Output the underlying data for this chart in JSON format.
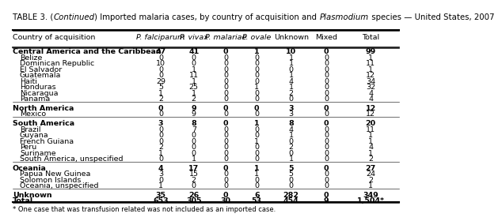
{
  "title_parts": [
    {
      "text": "TABLE 3. (",
      "italic": false
    },
    {
      "text": "Continued",
      "italic": true
    },
    {
      "text": ") Imported malaria cases, by country of acquisition and ",
      "italic": false
    },
    {
      "text": "Plasmodium",
      "italic": true
    },
    {
      "text": " species — United States, 2007",
      "italic": false
    }
  ],
  "columns": [
    "Country of acquisition",
    "P. falciparum",
    "P. vivax",
    "P. malariae",
    "P. ovale",
    "Unknown",
    "Mixed",
    "Total"
  ],
  "col_italic": [
    false,
    true,
    true,
    true,
    true,
    false,
    false,
    false
  ],
  "col_align": [
    "left",
    "right",
    "right",
    "right",
    "right",
    "right",
    "right",
    "right"
  ],
  "rows": [
    {
      "label": "Central America and the Caribbean",
      "bold": true,
      "indent": false,
      "values": [
        "47",
        "41",
        "0",
        "1",
        "10",
        "0",
        "99"
      ]
    },
    {
      "label": "Belize",
      "bold": false,
      "indent": true,
      "values": [
        "0",
        "0",
        "0",
        "0",
        "1",
        "0",
        "1"
      ]
    },
    {
      "label": "Dominican Republic",
      "bold": false,
      "indent": true,
      "values": [
        "10",
        "0",
        "0",
        "0",
        "1",
        "0",
        "11"
      ]
    },
    {
      "label": "El Salvador",
      "bold": false,
      "indent": true,
      "values": [
        "0",
        "1",
        "0",
        "0",
        "0",
        "0",
        "1"
      ]
    },
    {
      "label": "Guatemala",
      "bold": false,
      "indent": true,
      "values": [
        "0",
        "11",
        "0",
        "0",
        "1",
        "0",
        "12"
      ]
    },
    {
      "label": "Haiti",
      "bold": false,
      "indent": true,
      "values": [
        "29",
        "1",
        "0",
        "0",
        "4",
        "0",
        "34"
      ]
    },
    {
      "label": "Honduras",
      "bold": false,
      "indent": true,
      "values": [
        "5",
        "25",
        "0",
        "1",
        "1",
        "0",
        "32"
      ]
    },
    {
      "label": "Nicaragua",
      "bold": false,
      "indent": true,
      "values": [
        "1",
        "1",
        "0",
        "0",
        "2",
        "0",
        "4"
      ]
    },
    {
      "label": "Panama",
      "bold": false,
      "indent": true,
      "values": [
        "2",
        "2",
        "0",
        "0",
        "0",
        "0",
        "4"
      ]
    },
    {
      "label": "North America",
      "bold": true,
      "indent": false,
      "values": [
        "0",
        "9",
        "0",
        "0",
        "3",
        "0",
        "12"
      ]
    },
    {
      "label": "Mexico",
      "bold": false,
      "indent": true,
      "values": [
        "0",
        "9",
        "0",
        "0",
        "3",
        "0",
        "12"
      ]
    },
    {
      "label": "South America",
      "bold": true,
      "indent": false,
      "values": [
        "3",
        "8",
        "0",
        "1",
        "8",
        "0",
        "20"
      ]
    },
    {
      "label": "Brazil",
      "bold": false,
      "indent": true,
      "values": [
        "0",
        "7",
        "0",
        "0",
        "4",
        "0",
        "11"
      ]
    },
    {
      "label": "Guyana",
      "bold": false,
      "indent": true,
      "values": [
        "0",
        "0",
        "0",
        "0",
        "1",
        "0",
        "1"
      ]
    },
    {
      "label": "French Guiana",
      "bold": false,
      "indent": true,
      "values": [
        "0",
        "0",
        "0",
        "1",
        "0",
        "0",
        "1"
      ]
    },
    {
      "label": "Peru",
      "bold": false,
      "indent": true,
      "values": [
        "2",
        "0",
        "0",
        "0",
        "2",
        "0",
        "4"
      ]
    },
    {
      "label": "Suriname",
      "bold": false,
      "indent": true,
      "values": [
        "1",
        "0",
        "0",
        "0",
        "0",
        "0",
        "1"
      ]
    },
    {
      "label": "South America, unspecified",
      "bold": false,
      "indent": true,
      "values": [
        "0",
        "1",
        "0",
        "0",
        "1",
        "0",
        "2"
      ]
    },
    {
      "label": "Oceania",
      "bold": true,
      "indent": false,
      "values": [
        "4",
        "17",
        "0",
        "1",
        "5",
        "0",
        "27"
      ]
    },
    {
      "label": "Papua New Guinea",
      "bold": false,
      "indent": true,
      "values": [
        "3",
        "15",
        "0",
        "1",
        "5",
        "0",
        "24"
      ]
    },
    {
      "label": "Solomon Islands",
      "bold": false,
      "indent": true,
      "values": [
        "0",
        "2",
        "0",
        "0",
        "0",
        "0",
        "2"
      ]
    },
    {
      "label": "Oceania, unspecified",
      "bold": false,
      "indent": true,
      "values": [
        "1",
        "0",
        "0",
        "0",
        "0",
        "0",
        "1"
      ]
    },
    {
      "label": "Unknown",
      "bold": true,
      "indent": false,
      "values": [
        "35",
        "26",
        "0",
        "6",
        "282",
        "0",
        "349"
      ]
    },
    {
      "label": "Total",
      "bold": true,
      "indent": false,
      "values": [
        "653",
        "305",
        "30",
        "53",
        "454",
        "9",
        "1,504*"
      ]
    }
  ],
  "footnote": "* One case that was transfusion related was not included as an imported case.",
  "bg_color": "#ffffff",
  "text_color": "#000000",
  "line_color": "#000000",
  "font_size": 6.8,
  "title_font_size": 7.3
}
